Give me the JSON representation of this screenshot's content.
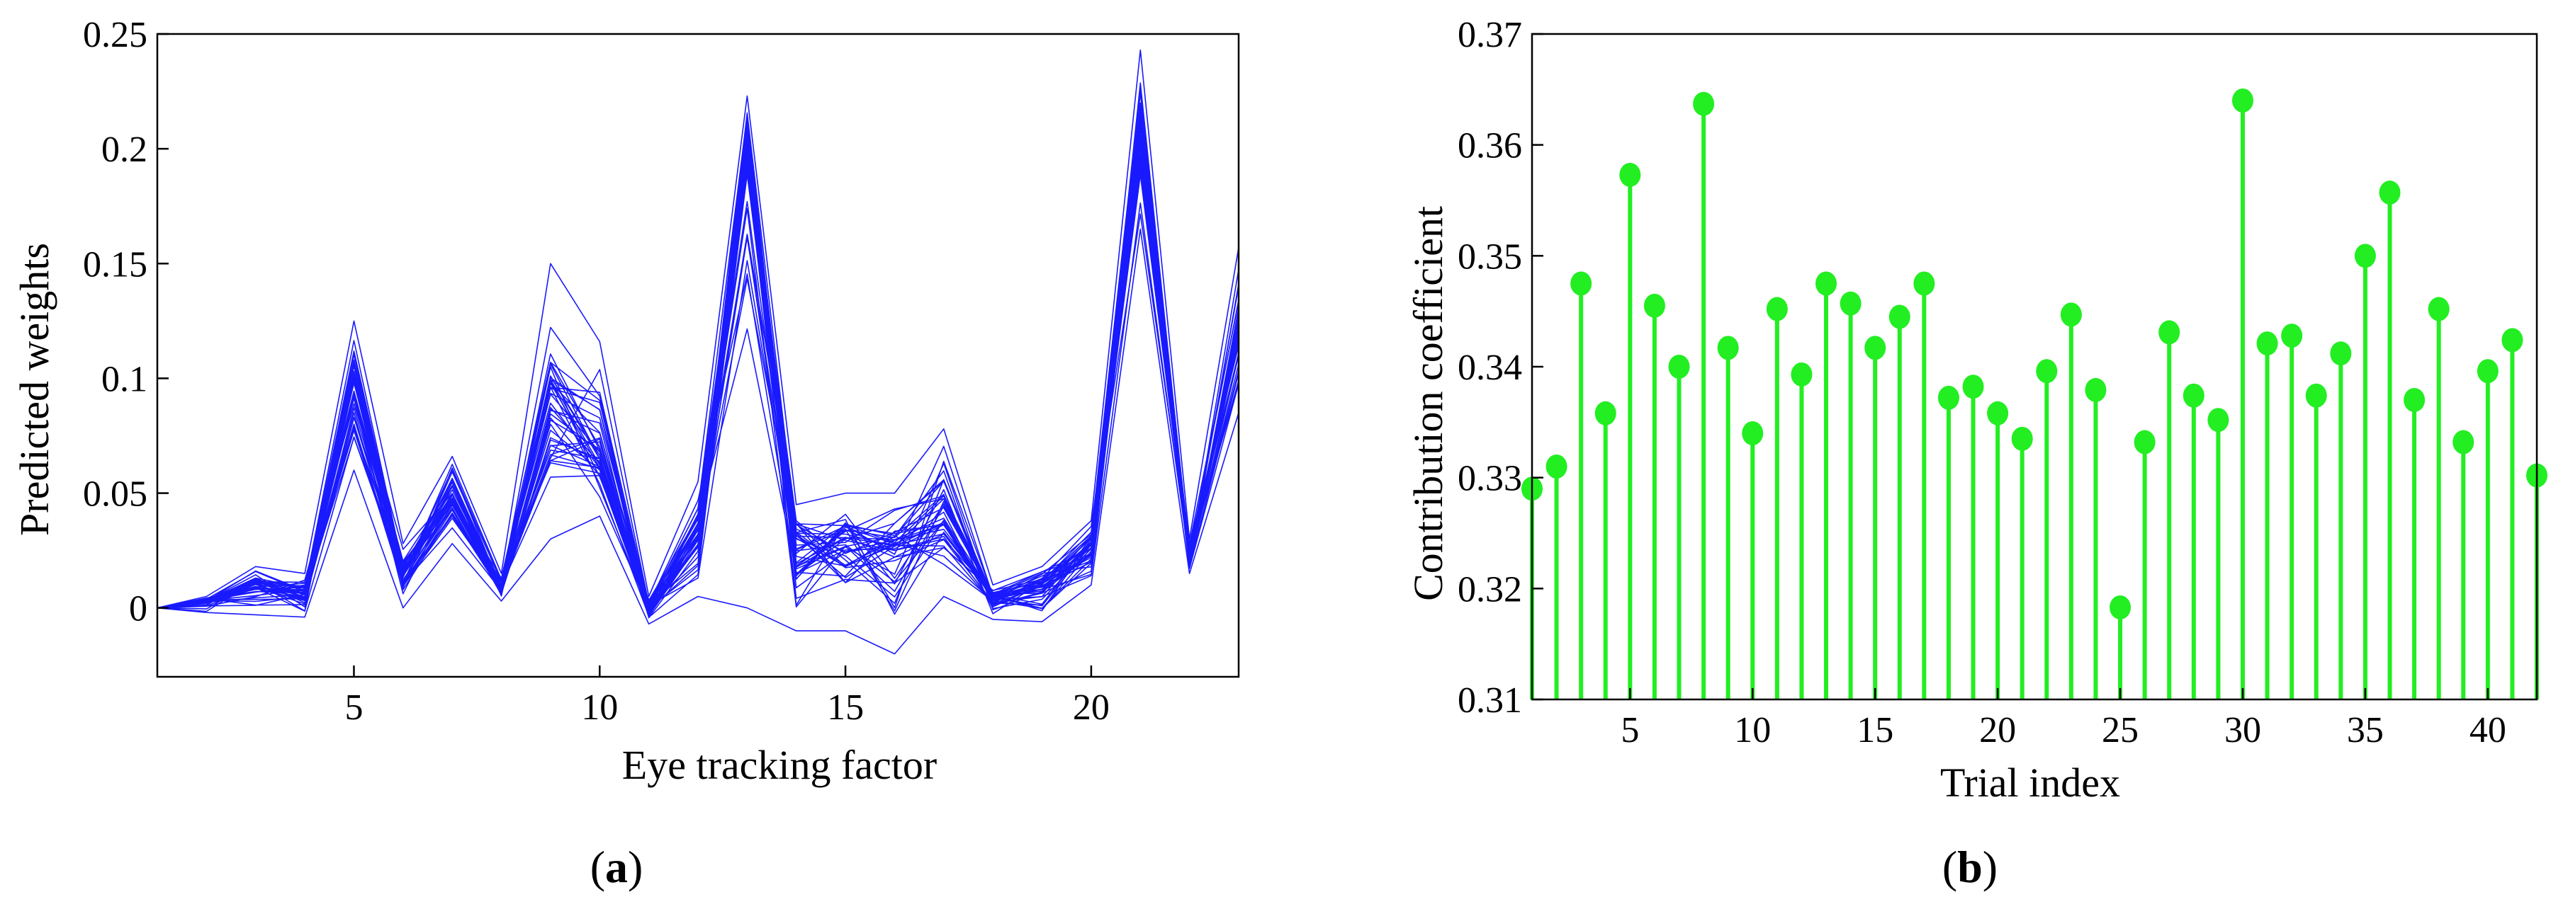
{
  "chart_data": [
    {
      "type": "line",
      "panel_label": "a",
      "xlabel": "Eye tracking factor",
      "ylabel": "Predicted weights",
      "xlim": [
        1,
        23
      ],
      "ylim": [
        -0.03,
        0.25
      ],
      "xticks": [
        5,
        10,
        15,
        20
      ],
      "yticks": [
        0,
        0.05,
        0.1,
        0.15,
        0.2,
        0.25
      ],
      "ytick_labels": [
        "0",
        "0.05",
        "0.1",
        "0.15",
        "0.2",
        "0.25"
      ],
      "color": "#1a1aff",
      "x": [
        1,
        2,
        3,
        4,
        5,
        6,
        7,
        8,
        9,
        10,
        11,
        12,
        13,
        14,
        15,
        16,
        17,
        18,
        19,
        20,
        21,
        22,
        23
      ],
      "series_center": [
        0,
        0.003,
        0.01,
        0.006,
        0.098,
        0.015,
        0.048,
        0.008,
        0.09,
        0.07,
        0.0,
        0.03,
        0.195,
        0.03,
        0.03,
        0.025,
        0.04,
        0.004,
        0.01,
        0.025,
        0.205,
        0.02,
        0.12
      ],
      "series_min": [
        0,
        -0.002,
        -0.003,
        -0.004,
        0.06,
        0.0,
        0.028,
        0.003,
        0.03,
        0.04,
        -0.007,
        0.005,
        0.0,
        -0.01,
        -0.01,
        -0.02,
        0.005,
        -0.005,
        -0.006,
        0.01,
        0.165,
        0.015,
        0.085
      ],
      "series_max": [
        0,
        0.005,
        0.018,
        0.015,
        0.125,
        0.028,
        0.066,
        0.015,
        0.15,
        0.116,
        0.005,
        0.055,
        0.223,
        0.045,
        0.05,
        0.05,
        0.078,
        0.01,
        0.018,
        0.038,
        0.243,
        0.03,
        0.157
      ],
      "n_series": 42
    },
    {
      "type": "stem",
      "panel_label": "b",
      "xlabel": "Trial index",
      "ylabel": "Contribution coefficient",
      "xlim": [
        1,
        42
      ],
      "ylim": [
        0.31,
        0.37
      ],
      "xticks": [
        5,
        10,
        15,
        20,
        25,
        30,
        35,
        40
      ],
      "yticks": [
        0.31,
        0.32,
        0.33,
        0.34,
        0.35,
        0.36,
        0.37
      ],
      "ytick_labels": [
        "0.31",
        "0.32",
        "0.33",
        "0.34",
        "0.35",
        "0.36",
        "0.37"
      ],
      "color": "#22ee22",
      "x": [
        1,
        2,
        3,
        4,
        5,
        6,
        7,
        8,
        9,
        10,
        11,
        12,
        13,
        14,
        15,
        16,
        17,
        18,
        19,
        20,
        21,
        22,
        23,
        24,
        25,
        26,
        27,
        28,
        29,
        30,
        31,
        32,
        33,
        34,
        35,
        36,
        37,
        38,
        39,
        40,
        41,
        42
      ],
      "values": [
        0.329,
        0.331,
        0.3475,
        0.3358,
        0.3573,
        0.3455,
        0.34,
        0.3637,
        0.3417,
        0.334,
        0.3452,
        0.3393,
        0.3475,
        0.3457,
        0.3417,
        0.3445,
        0.3475,
        0.3372,
        0.3382,
        0.3358,
        0.3335,
        0.3396,
        0.3447,
        0.3379,
        0.3183,
        0.3332,
        0.3431,
        0.3374,
        0.3352,
        0.364,
        0.3421,
        0.3428,
        0.3374,
        0.3412,
        0.35,
        0.3557,
        0.337,
        0.3452,
        0.3332,
        0.3396,
        0.3424,
        0.3302
      ]
    }
  ]
}
